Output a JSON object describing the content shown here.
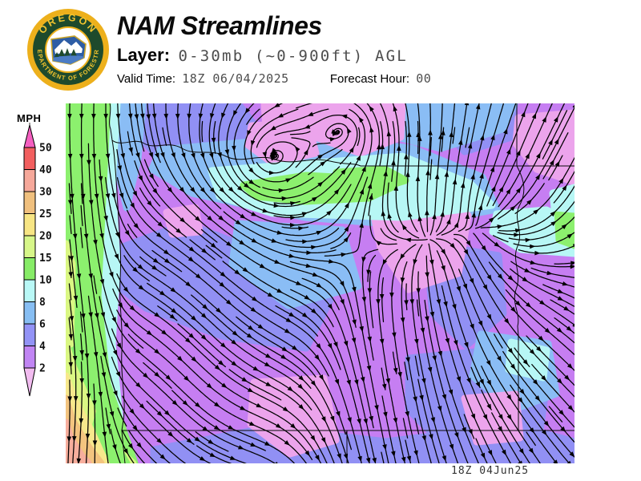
{
  "header": {
    "title": "NAM Streamlines",
    "layer_label": "Layer:",
    "layer_value": "0-30mb (~0-900ft) AGL",
    "valid_time_label": "Valid Time:",
    "valid_time_value": "18Z 06/04/2025",
    "forecast_hour_label": "Forecast Hour:",
    "forecast_hour_value": "00"
  },
  "logo": {
    "arc_top": "OREGON",
    "arc_bottom": "DEPARTMENT OF FORESTRY",
    "ring_color": "#edb01c",
    "disc_color": "#1e4a2c",
    "text_color": "#f2c42e"
  },
  "legend": {
    "title": "MPH",
    "labels": [
      "50",
      "40",
      "30",
      "25",
      "20",
      "15",
      "10",
      "8",
      "6",
      "4",
      "2"
    ],
    "segment_colors": [
      "#f25f5f",
      "#f6a89a",
      "#f0c07e",
      "#f7e584",
      "#d7f689",
      "#87ec67",
      "#b9f8f6",
      "#87bef3",
      "#9393f6",
      "#c185f4"
    ],
    "tip_top_color": "#f55fc0",
    "tip_bottom_color": "#f2bcf0"
  },
  "map": {
    "footer_timestamp": "18Z 04Jun25",
    "palette": {
      "violet": "#c67ef2",
      "pale_pink": "#eca4ec",
      "periwinkle": "#9190f4",
      "light_blue": "#8abdf5",
      "cyan": "#b7f7f5",
      "green": "#8cf06e",
      "yellow_green": "#daf783",
      "yellow": "#f7e88c",
      "orange": "#f3c47f",
      "salmon": "#f7ae9d",
      "stream_color": "#000000",
      "border_color": "#0a0a0a"
    },
    "features": {
      "vortices": [
        [
          255,
          68
        ],
        [
          351,
          33
        ]
      ],
      "sources": [
        [
          451,
          171
        ],
        [
          528,
          150
        ]
      ]
    }
  }
}
